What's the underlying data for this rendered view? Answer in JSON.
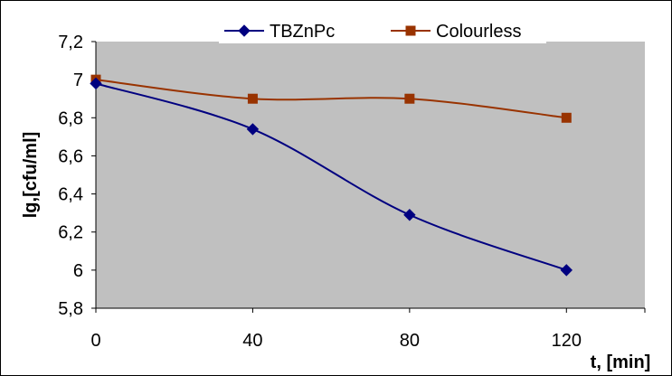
{
  "chart_data": {
    "type": "line",
    "title": "",
    "xlabel": "t, [min]",
    "ylabel": "lg,[cfu/ml]",
    "xlim": [
      0,
      140
    ],
    "ylim": [
      5.8,
      7.2
    ],
    "x_ticks": [
      0,
      40,
      80,
      120
    ],
    "x_tick_labels": [
      "0",
      "40",
      "80",
      "120"
    ],
    "y_ticks": [
      5.8,
      6.0,
      6.2,
      6.4,
      6.6,
      6.8,
      7.0,
      7.2
    ],
    "y_tick_labels": [
      "5,8",
      "6",
      "6,2",
      "6,4",
      "6,6",
      "6,8",
      "7",
      "7,2"
    ],
    "grid": false,
    "legend_position": "top",
    "series": [
      {
        "name": "TBZnPc",
        "marker": "diamond",
        "color": "#000080",
        "x": [
          0,
          40,
          80,
          120
        ],
        "values": [
          6.98,
          6.74,
          6.29,
          6.0
        ]
      },
      {
        "name": "Colourless",
        "marker": "square",
        "color": "#993300",
        "x": [
          0,
          40,
          80,
          120
        ],
        "values": [
          7.0,
          6.9,
          6.9,
          6.8
        ]
      }
    ]
  },
  "colors": {
    "plot_background": "#c0c0c0",
    "axis": "#000000"
  }
}
